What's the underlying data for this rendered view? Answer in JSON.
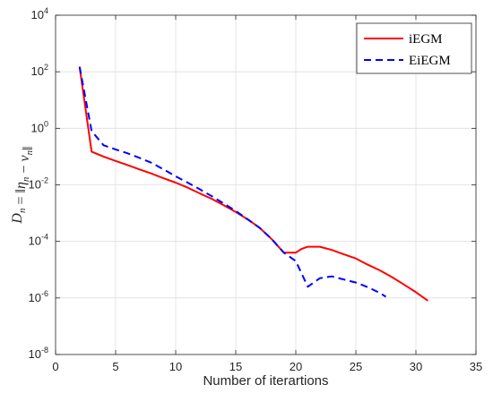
{
  "chart_data": {
    "type": "line",
    "title": "",
    "xlabel": "Number of iterartions",
    "ylabel": {
      "parts": [
        {
          "t": "D",
          "i": true
        },
        {
          "t": "n",
          "i": true,
          "sub": true
        },
        {
          "t": " = ‖",
          "i": false
        },
        {
          "t": "η",
          "i": true
        },
        {
          "t": "n",
          "i": true,
          "sub": true
        },
        {
          "t": " − ",
          "i": false
        },
        {
          "t": "v",
          "i": true
        },
        {
          "t": "n",
          "i": true,
          "sub": true
        },
        {
          "t": "‖",
          "i": false
        }
      ]
    },
    "xlim": [
      0,
      35
    ],
    "ylim_log10": [
      -8,
      4
    ],
    "xticks": [
      0,
      5,
      10,
      15,
      20,
      25,
      30,
      35
    ],
    "xtick_labels": [
      "0",
      "5",
      "10",
      "15",
      "20",
      "25",
      "30",
      "35"
    ],
    "ytick_exponents": [
      -8,
      -6,
      -4,
      -2,
      0,
      2,
      4
    ],
    "ytick_base": "10",
    "yscale": "log",
    "grid": true,
    "legend_position": "top-right",
    "series": [
      {
        "name": "iEGM",
        "color": "#ff0000",
        "style": "solid",
        "x": [
          2,
          3,
          4,
          5,
          6,
          7,
          8,
          9,
          10,
          11,
          12,
          13,
          14,
          15,
          16,
          17,
          18,
          19,
          20,
          20.5,
          21,
          22,
          23,
          24,
          25,
          26,
          27,
          28,
          29,
          30,
          31
        ],
        "y": [
          150,
          0.15,
          0.1,
          0.07,
          0.05,
          0.035,
          0.025,
          0.017,
          0.012,
          0.008,
          0.005,
          0.0032,
          0.0019,
          0.0011,
          0.0006,
          0.0003,
          0.00012,
          4e-05,
          4e-05,
          5.5e-05,
          6.5e-05,
          6.5e-05,
          5e-05,
          3.5e-05,
          2.5e-05,
          1.5e-05,
          9.5e-06,
          5.5e-06,
          3e-06,
          1.6e-06,
          8e-07
        ]
      },
      {
        "name": "EiEGM",
        "color": "#0000ff",
        "style": "dashed",
        "x": [
          2,
          3,
          4,
          5,
          6,
          7,
          8,
          9,
          10,
          11,
          12,
          13,
          14,
          15,
          16,
          17,
          18,
          19,
          20,
          21,
          22,
          23,
          24,
          25,
          26,
          27,
          27.5
        ],
        "y": [
          150,
          0.8,
          0.25,
          0.18,
          0.13,
          0.09,
          0.06,
          0.035,
          0.02,
          0.012,
          0.007,
          0.004,
          0.0022,
          0.0012,
          0.0006,
          0.0003,
          0.00012,
          4e-05,
          2e-05,
          2.5e-06,
          5e-06,
          5.8e-06,
          4.5e-06,
          3.5e-06,
          2.4e-06,
          1.5e-06,
          1.1e-06
        ]
      }
    ]
  }
}
